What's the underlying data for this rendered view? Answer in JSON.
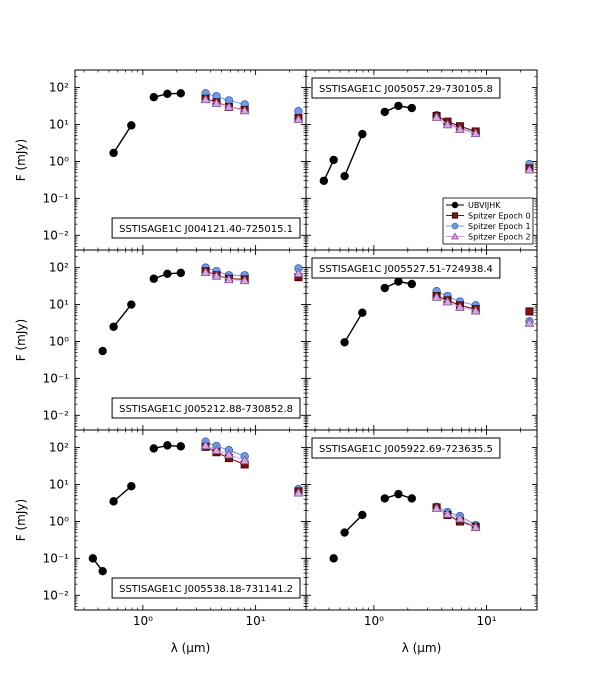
{
  "figure": {
    "ylabel": "F (mJy)",
    "xlabel": "λ (μm)",
    "xlim": [
      0.25,
      28
    ],
    "ylim": [
      0.004,
      300
    ],
    "x_ticks": [
      {
        "value": 1,
        "label": "10⁰"
      },
      {
        "value": 10,
        "label": "10¹"
      }
    ],
    "y_ticks": [
      {
        "value": 0.01,
        "label": "10⁻²"
      },
      {
        "value": 0.1,
        "label": "10⁻¹"
      },
      {
        "value": 1,
        "label": "10⁰"
      },
      {
        "value": 10,
        "label": "10¹"
      },
      {
        "value": 100,
        "label": "10²"
      }
    ]
  },
  "colors": {
    "ubvijhk": "#000000",
    "epoch0": "#7a1212",
    "epoch1": "#6f9be8",
    "epoch2": "#d8a6e6"
  },
  "legend": [
    "UBVIJHK",
    "Spitzer Epoch 0",
    "Spitzer Epoch 1",
    "Spitzer Epoch 2"
  ],
  "chart_data": [
    {
      "type": "scatter",
      "name": "SSTISAGE1C J004121.40-725015.1",
      "name_position": "bottom-right",
      "series": [
        {
          "name": "UBVIJHK",
          "segments": [
            [
              {
                "x": 0.55,
                "y": 1.7
              },
              {
                "x": 0.79,
                "y": 9.5
              }
            ],
            [
              {
                "x": 1.25,
                "y": 55
              },
              {
                "x": 1.65,
                "y": 68
              },
              {
                "x": 2.17,
                "y": 70
              }
            ]
          ]
        },
        {
          "name": "Spitzer Epoch 0",
          "segments": [
            [
              {
                "x": 3.6,
                "y": 50
              },
              {
                "x": 4.5,
                "y": 40
              },
              {
                "x": 5.8,
                "y": 30
              },
              {
                "x": 8.0,
                "y": 25
              }
            ]
          ],
          "extra": [
            {
              "x": 24,
              "y": 15
            }
          ]
        },
        {
          "name": "Spitzer Epoch 1",
          "segments": [
            [
              {
                "x": 3.6,
                "y": 70
              },
              {
                "x": 4.5,
                "y": 58
              },
              {
                "x": 5.8,
                "y": 45
              },
              {
                "x": 8.0,
                "y": 35
              }
            ]
          ],
          "extra": [
            {
              "x": 24,
              "y": 23
            }
          ]
        },
        {
          "name": "Spitzer Epoch 2",
          "segments": [
            [
              {
                "x": 3.6,
                "y": 48
              },
              {
                "x": 4.5,
                "y": 38
              },
              {
                "x": 5.8,
                "y": 30
              },
              {
                "x": 8.0,
                "y": 24
              }
            ]
          ],
          "extra": [
            {
              "x": 24,
              "y": 14
            }
          ]
        }
      ]
    },
    {
      "type": "scatter",
      "name": "SSTISAGE1C J005057.29-730105.8",
      "name_position": "top-left",
      "legend": true,
      "series": [
        {
          "name": "UBVIJHK",
          "segments": [
            [
              {
                "x": 0.36,
                "y": 0.3
              },
              {
                "x": 0.44,
                "y": 1.1
              }
            ],
            [
              {
                "x": 0.55,
                "y": 0.4
              },
              {
                "x": 0.79,
                "y": 5.5
              }
            ],
            [
              {
                "x": 1.25,
                "y": 22
              },
              {
                "x": 1.65,
                "y": 32
              },
              {
                "x": 2.17,
                "y": 28
              }
            ]
          ]
        },
        {
          "name": "Spitzer Epoch 0",
          "segments": [
            [
              {
                "x": 3.6,
                "y": 17
              },
              {
                "x": 4.5,
                "y": 12
              },
              {
                "x": 5.8,
                "y": 9
              },
              {
                "x": 8.0,
                "y": 6.5
              }
            ]
          ],
          "extra": [
            {
              "x": 24,
              "y": 0.65
            }
          ]
        },
        {
          "name": "Spitzer Epoch 1",
          "segments": [
            [
              {
                "x": 3.6,
                "y": 18
              },
              {
                "x": 4.5,
                "y": 11
              },
              {
                "x": 5.8,
                "y": 8
              },
              {
                "x": 8.0,
                "y": 6
              }
            ]
          ],
          "extra": [
            {
              "x": 24,
              "y": 0.85
            }
          ]
        },
        {
          "name": "Spitzer Epoch 2",
          "segments": [
            [
              {
                "x": 3.6,
                "y": 16
              },
              {
                "x": 4.5,
                "y": 10
              },
              {
                "x": 5.8,
                "y": 7.5
              },
              {
                "x": 8.0,
                "y": 5.8
              }
            ]
          ],
          "extra": [
            {
              "x": 24,
              "y": 0.6
            }
          ]
        }
      ]
    },
    {
      "type": "scatter",
      "name": "SSTISAGE1C J005212.88-730852.8",
      "name_position": "bottom-right",
      "series": [
        {
          "name": "UBVIJHK",
          "segments": [
            [
              {
                "x": 0.44,
                "y": 0.55
              }
            ],
            [
              {
                "x": 0.55,
                "y": 2.5
              },
              {
                "x": 0.79,
                "y": 10
              }
            ],
            [
              {
                "x": 1.25,
                "y": 50
              },
              {
                "x": 1.65,
                "y": 68
              },
              {
                "x": 2.17,
                "y": 72
              }
            ]
          ]
        },
        {
          "name": "Spitzer Epoch 0",
          "segments": [
            [
              {
                "x": 3.6,
                "y": 80
              },
              {
                "x": 4.5,
                "y": 62
              },
              {
                "x": 5.8,
                "y": 50
              },
              {
                "x": 8.0,
                "y": 48
              }
            ]
          ],
          "extra": [
            {
              "x": 24,
              "y": 55
            }
          ]
        },
        {
          "name": "Spitzer Epoch 1",
          "segments": [
            [
              {
                "x": 3.6,
                "y": 100
              },
              {
                "x": 4.5,
                "y": 80
              },
              {
                "x": 5.8,
                "y": 62
              },
              {
                "x": 8.0,
                "y": 62
              }
            ]
          ],
          "extra": [
            {
              "x": 24,
              "y": 95
            }
          ]
        },
        {
          "name": "Spitzer Epoch 2",
          "segments": [
            [
              {
                "x": 3.6,
                "y": 75
              },
              {
                "x": 4.5,
                "y": 60
              },
              {
                "x": 5.8,
                "y": 48
              },
              {
                "x": 8.0,
                "y": 45
              }
            ]
          ],
          "extra": [
            {
              "x": 24,
              "y": 70
            }
          ]
        }
      ]
    },
    {
      "type": "scatter",
      "name": "SSTISAGE1C J005527.51-724938.4",
      "name_position": "top-left",
      "series": [
        {
          "name": "UBVIJHK",
          "segments": [
            [
              {
                "x": 0.55,
                "y": 0.95
              },
              {
                "x": 0.79,
                "y": 6
              }
            ],
            [
              {
                "x": 1.25,
                "y": 28
              },
              {
                "x": 1.65,
                "y": 42
              },
              {
                "x": 2.17,
                "y": 36
              }
            ]
          ]
        },
        {
          "name": "Spitzer Epoch 0",
          "segments": [
            [
              {
                "x": 3.6,
                "y": 17
              },
              {
                "x": 4.5,
                "y": 13
              },
              {
                "x": 5.8,
                "y": 9.5
              },
              {
                "x": 8.0,
                "y": 7.5
              }
            ]
          ],
          "extra": [
            {
              "x": 24,
              "y": 6.5
            }
          ]
        },
        {
          "name": "Spitzer Epoch 1",
          "segments": [
            [
              {
                "x": 3.6,
                "y": 23
              },
              {
                "x": 4.5,
                "y": 17
              },
              {
                "x": 5.8,
                "y": 12
              },
              {
                "x": 8.0,
                "y": 9.5
              }
            ]
          ],
          "extra": [
            {
              "x": 24,
              "y": 3.5
            }
          ]
        },
        {
          "name": "Spitzer Epoch 2",
          "segments": [
            [
              {
                "x": 3.6,
                "y": 16
              },
              {
                "x": 4.5,
                "y": 12
              },
              {
                "x": 5.8,
                "y": 8.5
              },
              {
                "x": 8.0,
                "y": 6.8
              }
            ]
          ],
          "extra": [
            {
              "x": 24,
              "y": 3.2
            }
          ]
        }
      ]
    },
    {
      "type": "scatter",
      "name": "SSTISAGE1C J005538.18-731141.2",
      "name_position": "bottom-right",
      "series": [
        {
          "name": "UBVIJHK",
          "segments": [
            [
              {
                "x": 0.36,
                "y": 0.1
              },
              {
                "x": 0.44,
                "y": 0.045
              }
            ],
            [
              {
                "x": 0.55,
                "y": 3.5
              },
              {
                "x": 0.79,
                "y": 9
              }
            ],
            [
              {
                "x": 1.25,
                "y": 95
              },
              {
                "x": 1.65,
                "y": 115
              },
              {
                "x": 2.17,
                "y": 108
              }
            ]
          ]
        },
        {
          "name": "Spitzer Epoch 0",
          "segments": [
            [
              {
                "x": 3.6,
                "y": 105
              },
              {
                "x": 4.5,
                "y": 75
              },
              {
                "x": 5.8,
                "y": 52
              },
              {
                "x": 8.0,
                "y": 35
              }
            ]
          ],
          "extra": [
            {
              "x": 24,
              "y": 6.5
            }
          ]
        },
        {
          "name": "Spitzer Epoch 1",
          "segments": [
            [
              {
                "x": 3.6,
                "y": 145
              },
              {
                "x": 4.5,
                "y": 110
              },
              {
                "x": 5.8,
                "y": 85
              },
              {
                "x": 8.0,
                "y": 58
              }
            ]
          ],
          "extra": [
            {
              "x": 24,
              "y": 7.5
            }
          ]
        },
        {
          "name": "Spitzer Epoch 2",
          "segments": [
            [
              {
                "x": 3.6,
                "y": 115
              },
              {
                "x": 4.5,
                "y": 85
              },
              {
                "x": 5.8,
                "y": 65
              },
              {
                "x": 8.0,
                "y": 45
              }
            ]
          ],
          "extra": [
            {
              "x": 24,
              "y": 6
            }
          ]
        }
      ]
    },
    {
      "type": "scatter",
      "name": "SSTISAGE1C J005922.69-723635.5",
      "name_position": "top-left",
      "series": [
        {
          "name": "UBVIJHK",
          "segments": [
            [
              {
                "x": 0.44,
                "y": 0.1
              }
            ],
            [
              {
                "x": 0.55,
                "y": 0.5
              },
              {
                "x": 0.79,
                "y": 1.5
              }
            ],
            [
              {
                "x": 1.25,
                "y": 4.2
              },
              {
                "x": 1.65,
                "y": 5.5
              },
              {
                "x": 2.17,
                "y": 4.2
              }
            ]
          ]
        },
        {
          "name": "Spitzer Epoch 0",
          "segments": [
            [
              {
                "x": 3.6,
                "y": 2.4
              },
              {
                "x": 4.5,
                "y": 1.5
              },
              {
                "x": 5.8,
                "y": 1.0
              },
              {
                "x": 8.0,
                "y": 0.72
              }
            ]
          ]
        },
        {
          "name": "Spitzer Epoch 1",
          "segments": [
            [
              {
                "x": 3.6,
                "y": 2.5
              },
              {
                "x": 4.5,
                "y": 1.8
              },
              {
                "x": 5.8,
                "y": 1.4
              },
              {
                "x": 8.0,
                "y": 0.8
              }
            ]
          ]
        },
        {
          "name": "Spitzer Epoch 2",
          "segments": [
            [
              {
                "x": 3.6,
                "y": 2.3
              },
              {
                "x": 4.5,
                "y": 1.6
              },
              {
                "x": 5.8,
                "y": 1.2
              },
              {
                "x": 8.0,
                "y": 0.7
              }
            ]
          ]
        }
      ]
    }
  ]
}
